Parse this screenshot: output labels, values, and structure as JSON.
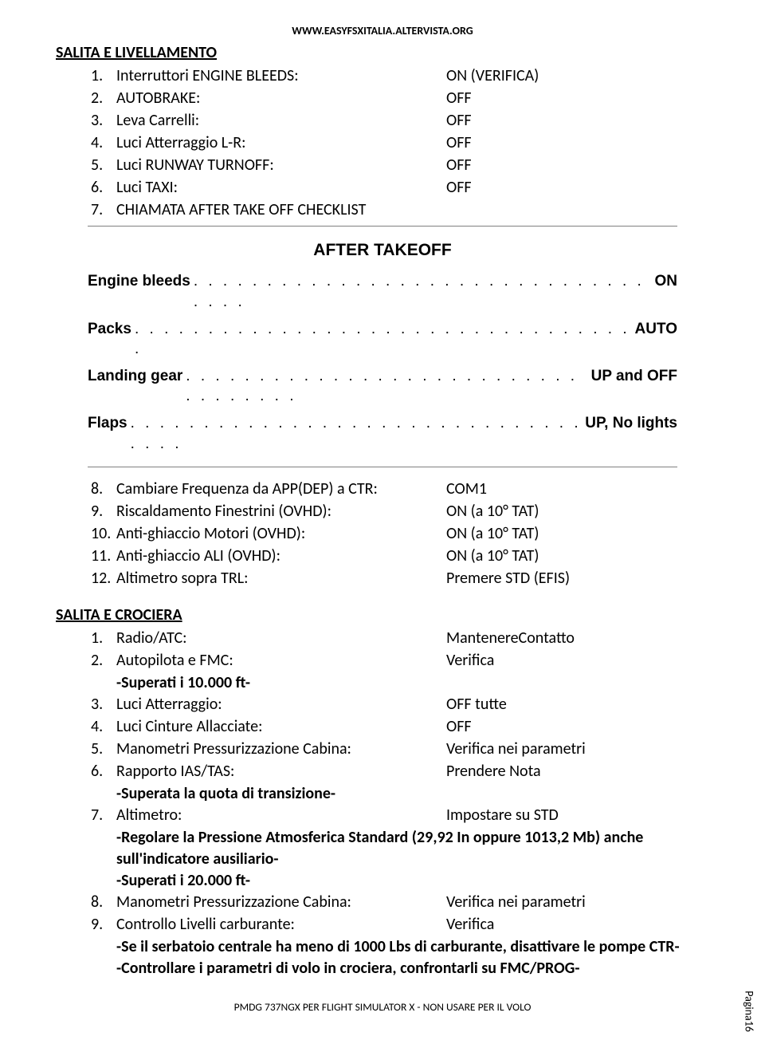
{
  "header_url": "WWW.EASYFSXITALIA.ALTERVISTA.ORG",
  "section1_title": "SALITA E LIVELLAMENTO",
  "section1_items": [
    {
      "n": "1.",
      "label": "Interruttori ENGINE BLEEDS:",
      "value": "ON (VERIFICA)"
    },
    {
      "n": "2.",
      "label": "AUTOBRAKE:",
      "value": "OFF"
    },
    {
      "n": "3.",
      "label": "Leva Carrelli:",
      "value": "OFF"
    },
    {
      "n": "4.",
      "label": "Luci Atterraggio L-R:",
      "value": "OFF"
    },
    {
      "n": "5.",
      "label": "Luci RUNWAY TURNOFF:",
      "value": "OFF"
    },
    {
      "n": "6.",
      "label": "Luci TAXI:",
      "value": "OFF"
    },
    {
      "n": "7.",
      "label": "CHIAMATA AFTER TAKE OFF CHECKLIST",
      "value": ""
    }
  ],
  "checklist_title": "AFTER TAKEOFF",
  "checklist_rows": [
    {
      "label": "Engine bleeds",
      "value": "ON"
    },
    {
      "label": "Packs",
      "value": "AUTO"
    },
    {
      "label": "Landing gear",
      "value": "UP and OFF"
    },
    {
      "label": "Flaps",
      "value": "UP, No lights"
    }
  ],
  "section1b_items": [
    {
      "n": "8.",
      "label": "Cambiare Frequenza da APP(DEP) a CTR:",
      "value": "COM1"
    },
    {
      "n": "9.",
      "label": "Riscaldamento Finestrini (OVHD):",
      "value": "ON (a 10° TAT)"
    },
    {
      "n": "10.",
      "label": "Anti-ghiaccio Motori (OVHD):",
      "value": "ON (a 10° TAT)"
    },
    {
      "n": "11.",
      "label": "Anti-ghiaccio ALI (OVHD):",
      "value": "ON (a 10° TAT)"
    },
    {
      "n": "12.",
      "label": "Altimetro sopra TRL:",
      "value": "Premere STD (EFIS)"
    }
  ],
  "section2_title": "SALITA E CROCIERA",
  "section2_items": [
    {
      "n": "1.",
      "label": "Radio/ATC:",
      "value": "MantenereContatto",
      "extra": ""
    },
    {
      "n": "2.",
      "label": "Autopilota e FMC:",
      "value": "Verifica",
      "extra": "-Superati i 10.000 ft-",
      "extrabold": true
    },
    {
      "n": "3.",
      "label": "Luci Atterraggio:",
      "value": "OFF tutte",
      "extra": ""
    },
    {
      "n": "4.",
      "label": "Luci Cinture Allacciate:",
      "value": "OFF",
      "extra": ""
    },
    {
      "n": "5.",
      "label": "Manometri Pressurizzazione Cabina:",
      "value": "Verifica nei parametri",
      "extra": ""
    },
    {
      "n": "6.",
      "label": "Rapporto IAS/TAS:",
      "value": "Prendere Nota",
      "extra": "-Superata la quota di transizione-",
      "extrabold": true
    },
    {
      "n": "7.",
      "label": "Altimetro:",
      "value": "Impostare su STD",
      "extra": "",
      "multiline": [
        "-Regolare la Pressione Atmosferica Standard (29,92 In oppure 1013,2 Mb) anche sull'indicatore ausiliario-",
        "-Superati i 20.000 ft-"
      ],
      "multilinebold": true
    },
    {
      "n": "8.",
      "label": "Manometri Pressurizzazione Cabina:",
      "value": "Verifica nei parametri",
      "extra": ""
    },
    {
      "n": "9.",
      "label": "Controllo Livelli carburante:",
      "value": "Verifica",
      "extra": "",
      "multiline": [
        "-Se il serbatoio centrale ha meno di 1000 Lbs di carburante, disattivare le pompe CTR-",
        "-Controllare i parametri di volo in crociera, confrontarli su FMC/PROG-"
      ],
      "multilinebold": true
    }
  ],
  "footer_text": "PMDG 737NGX PER FLIGHT SIMULATOR X - NON USARE PER IL VOLO",
  "page_number": "Pagina16",
  "dots": ". . . . . . . . . . . . . . . . . . . . . . . . . . . . . . . . . . . . ."
}
